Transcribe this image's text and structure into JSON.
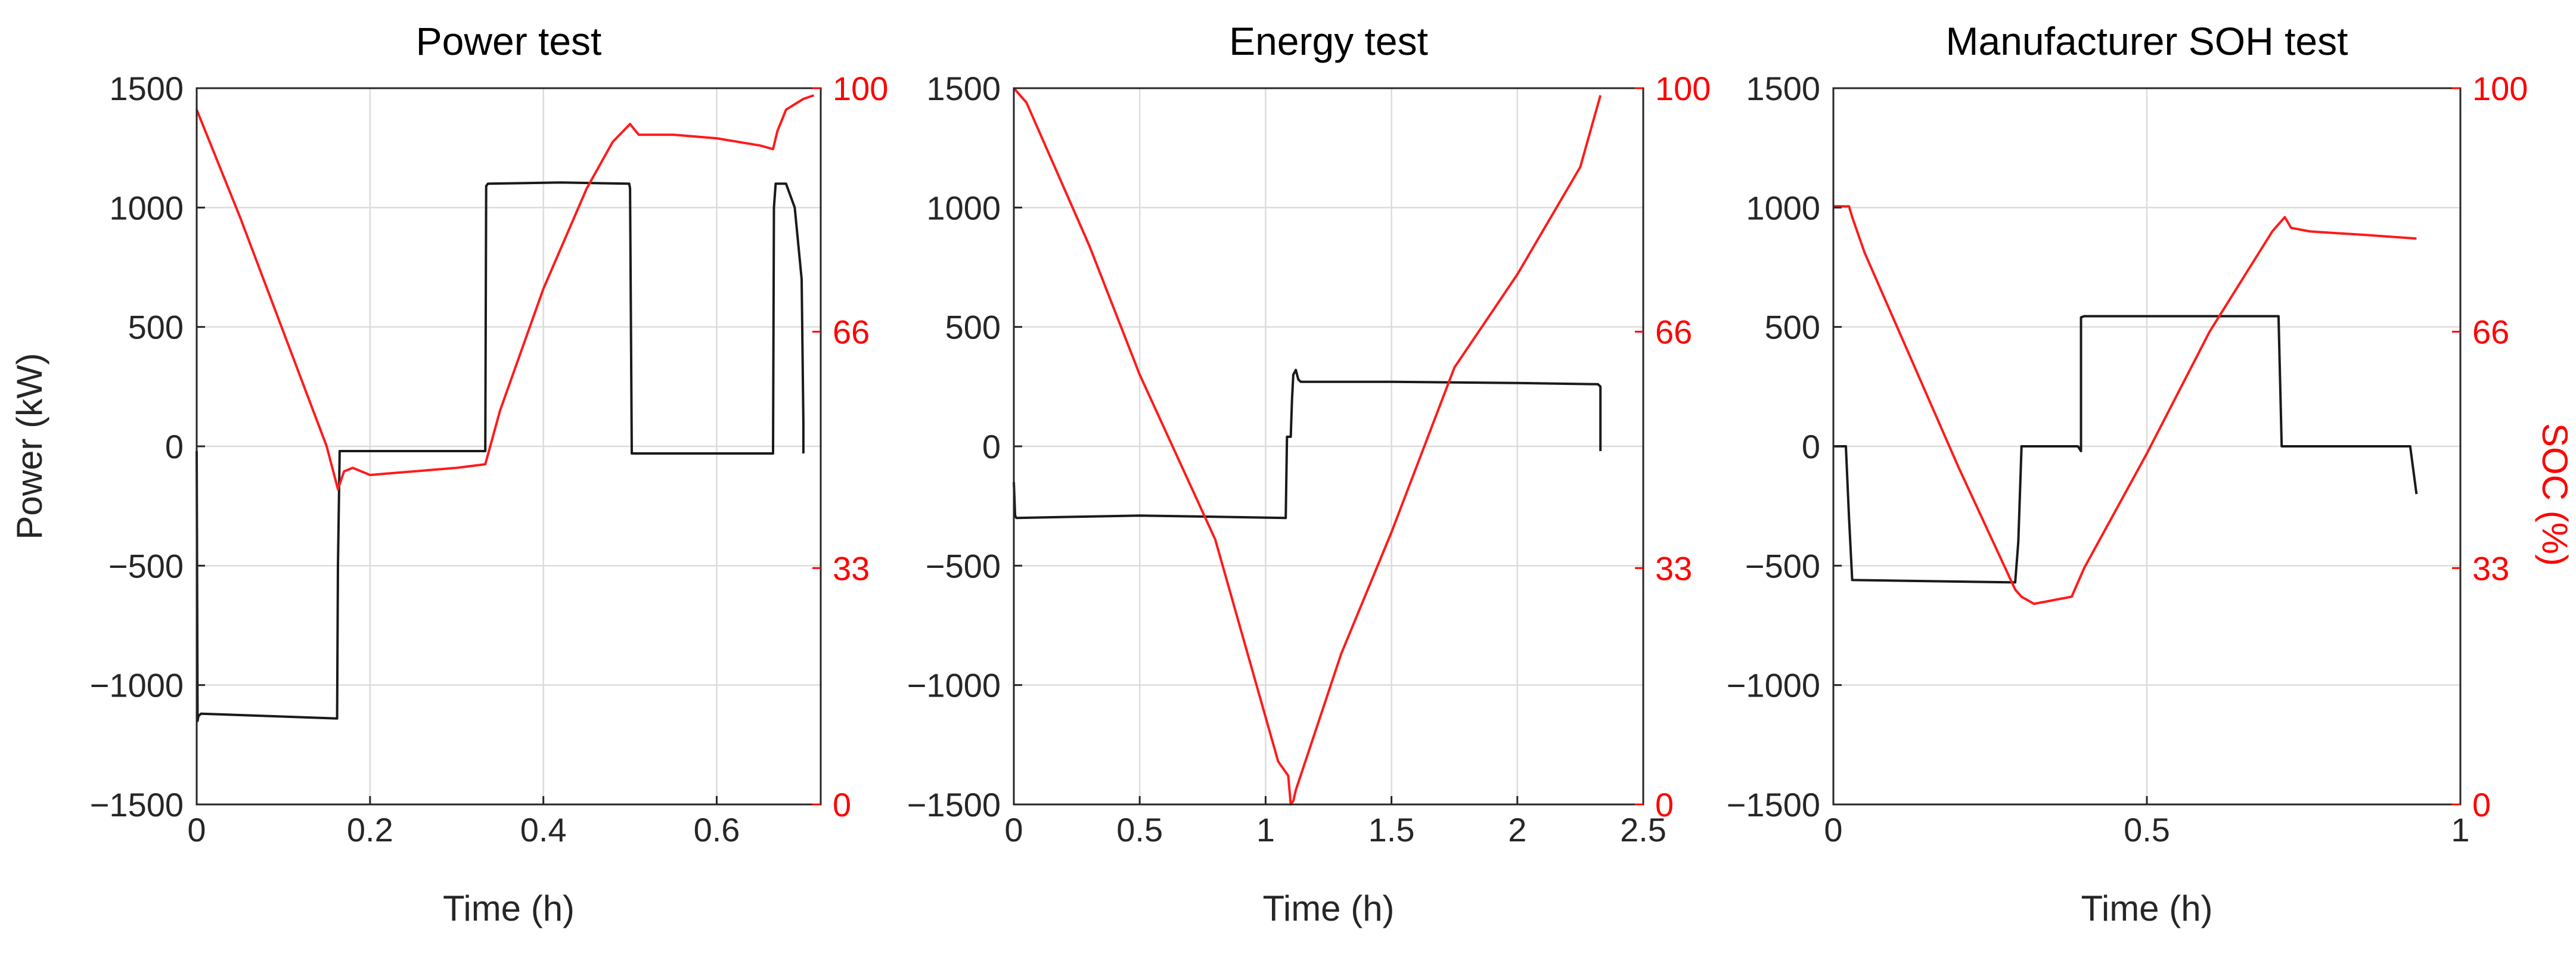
{
  "colors": {
    "power": "#1a1a1a",
    "soc": "#ff1a1a",
    "axis_left": "#262626",
    "axis_right": "#ff0000",
    "grid": "#dcdcdc"
  },
  "chart_data": [
    {
      "type": "line",
      "title": "Power test",
      "xlabel": "Time (h)",
      "ylabel": "Power (kW)",
      "y2label": "",
      "grid": true,
      "xlim": [
        0,
        0.72
      ],
      "ylim": [
        -1500,
        1500
      ],
      "y2lim": [
        0,
        100
      ],
      "xticks": [
        0,
        0.2,
        0.4,
        0.6
      ],
      "xtick_labels": [
        "0",
        "0.2",
        "0.4",
        "0.6"
      ],
      "yticks": [
        -1500,
        -1000,
        -500,
        0,
        500,
        1000,
        1500
      ],
      "ytick_labels": [
        "−1500",
        "−1000",
        "−500",
        "0",
        "500",
        "1000",
        "1500"
      ],
      "y2ticks": [
        0,
        33,
        66,
        100
      ],
      "y2tick_labels": [
        "0",
        "33",
        "66",
        "100"
      ],
      "series": [
        {
          "name": "Power",
          "axis": "left",
          "x": [
            0,
            0.001,
            0.002,
            0.005,
            0.162,
            0.163,
            0.165,
            0.333,
            0.334,
            0.336,
            0.42,
            0.499,
            0.5,
            0.502,
            0.665,
            0.666,
            0.668,
            0.68,
            0.69,
            0.698,
            0.7,
            0.7
          ],
          "y": [
            -20,
            -1150,
            -1130,
            -1120,
            -1140,
            -500,
            -20,
            -20,
            1090,
            1100,
            1105,
            1100,
            1080,
            -30,
            -30,
            1000,
            1100,
            1100,
            1000,
            700,
            100,
            -30
          ]
        },
        {
          "name": "SOC",
          "axis": "right",
          "x": [
            0,
            0.02,
            0.05,
            0.1,
            0.15,
            0.163,
            0.17,
            0.18,
            0.2,
            0.25,
            0.3,
            0.333,
            0.35,
            0.4,
            0.45,
            0.48,
            0.5,
            0.51,
            0.55,
            0.6,
            0.65,
            0.665,
            0.67,
            0.68,
            0.7,
            0.712
          ],
          "y": [
            97,
            91,
            82,
            66,
            50,
            44,
            46.5,
            47,
            46,
            46.5,
            47,
            47.5,
            55,
            72,
            86,
            92.5,
            95,
            93.5,
            93.5,
            93,
            92,
            91.5,
            94,
            97,
            98.5,
            99
          ]
        }
      ]
    },
    {
      "type": "line",
      "title": "Energy test",
      "xlabel": "Time (h)",
      "ylabel": "",
      "y2label": "",
      "grid": true,
      "xlim": [
        0,
        2.5
      ],
      "ylim": [
        -1500,
        1500
      ],
      "y2lim": [
        0,
        100
      ],
      "xticks": [
        0,
        0.5,
        1,
        1.5,
        2,
        2.5
      ],
      "xtick_labels": [
        "0",
        "0.5",
        "1",
        "1.5",
        "2",
        "2.5"
      ],
      "yticks": [
        -1500,
        -1000,
        -500,
        0,
        500,
        1000,
        1500
      ],
      "ytick_labels": [
        "−1500",
        "−1000",
        "−500",
        "0",
        "500",
        "1000",
        "1500"
      ],
      "y2ticks": [
        0,
        33,
        66,
        100
      ],
      "y2tick_labels": [
        "0",
        "33",
        "66",
        "100"
      ],
      "series": [
        {
          "name": "Power",
          "axis": "left",
          "x": [
            0,
            0.005,
            0.01,
            0.5,
            1.08,
            1.085,
            1.1,
            1.105,
            1.11,
            1.12,
            1.13,
            1.14,
            1.5,
            2.0,
            2.32,
            2.33,
            2.33
          ],
          "y": [
            -150,
            -290,
            -300,
            -290,
            -300,
            40,
            40,
            200,
            300,
            320,
            280,
            270,
            270,
            265,
            260,
            250,
            -20
          ]
        },
        {
          "name": "SOC",
          "axis": "right",
          "x": [
            0,
            0.05,
            0.3,
            0.5,
            0.8,
            1.05,
            1.09,
            1.1,
            1.11,
            1.12,
            1.3,
            1.5,
            1.75,
            2.0,
            2.25,
            2.33
          ],
          "y": [
            100,
            98,
            78,
            60,
            37,
            6,
            4,
            0,
            0.5,
            2,
            21,
            38,
            61,
            74,
            89,
            99
          ]
        }
      ]
    },
    {
      "type": "line",
      "title": "Manufacturer SOH test",
      "xlabel": "Time (h)",
      "ylabel": "",
      "y2label": "SOC (%)",
      "grid": true,
      "xlim": [
        0,
        1
      ],
      "ylim": [
        -1500,
        1500
      ],
      "y2lim": [
        0,
        100
      ],
      "xticks": [
        0,
        0.5,
        1
      ],
      "xtick_labels": [
        "0",
        "0.5",
        "1"
      ],
      "yticks": [
        -1500,
        -1000,
        -500,
        0,
        500,
        1000,
        1500
      ],
      "ytick_labels": [
        "−1500",
        "−1000",
        "−500",
        "0",
        "500",
        "1000",
        "1500"
      ],
      "y2ticks": [
        0,
        33,
        66,
        100
      ],
      "y2tick_labels": [
        "0",
        "33",
        "66",
        "100"
      ],
      "series": [
        {
          "name": "Power",
          "axis": "left",
          "x": [
            0,
            0.02,
            0.025,
            0.03,
            0.29,
            0.295,
            0.3,
            0.3,
            0.39,
            0.395,
            0.395,
            0.4,
            0.71,
            0.715,
            0.72,
            0.92,
            0.925,
            0.93
          ],
          "y": [
            0,
            0,
            -300,
            -560,
            -570,
            -400,
            -10,
            0,
            0,
            -20,
            540,
            545,
            545,
            0,
            0,
            0,
            -100,
            -200
          ]
        },
        {
          "name": "SOC",
          "axis": "right",
          "x": [
            0,
            0.025,
            0.03,
            0.05,
            0.1,
            0.2,
            0.29,
            0.3,
            0.32,
            0.35,
            0.38,
            0.4,
            0.5,
            0.6,
            0.7,
            0.72,
            0.73,
            0.76,
            0.85,
            0.93
          ],
          "y": [
            83.5,
            83.5,
            82,
            77,
            67,
            47,
            30,
            29,
            28,
            28.5,
            29,
            33,
            49,
            66,
            80,
            82,
            80.5,
            80,
            79.5,
            79
          ]
        }
      ]
    }
  ]
}
